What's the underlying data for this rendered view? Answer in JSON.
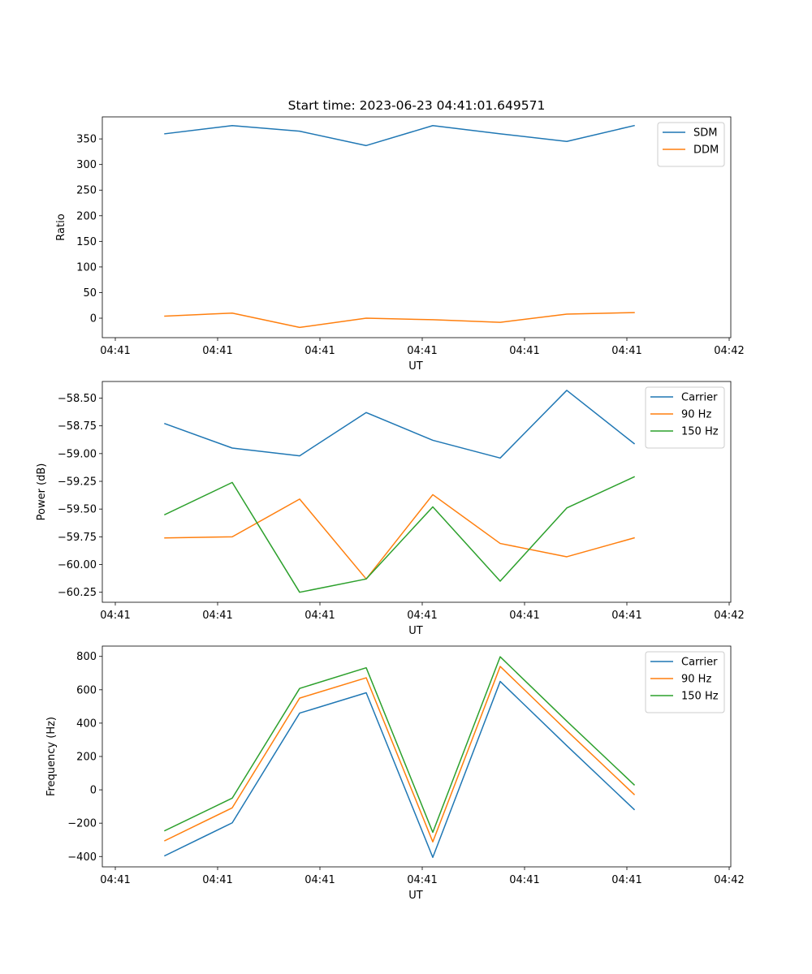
{
  "chart_data": [
    {
      "type": "line",
      "title": "Start time: 2023-06-23 04:41:01.649571",
      "xlabel": "UT",
      "ylabel": "Ratio",
      "x": [
        1,
        2,
        3,
        4,
        5,
        6,
        7,
        8
      ],
      "x_tick_labels": [
        "04:41",
        "04:41",
        "04:41",
        "04:41",
        "04:41",
        "04:41",
        "04:42"
      ],
      "ylim": [
        -38,
        393
      ],
      "yticks": [
        0,
        50,
        100,
        150,
        200,
        250,
        300,
        350
      ],
      "ytick_labels": [
        "0",
        "50",
        "100",
        "150",
        "200",
        "250",
        "300",
        "350"
      ],
      "legend": "top-right",
      "grid": false,
      "series": [
        {
          "name": "SDM",
          "color": "#1f77b4",
          "values": [
            360,
            376,
            365,
            337,
            376,
            360,
            345,
            376
          ]
        },
        {
          "name": "DDM",
          "color": "#ff7f0e",
          "values": [
            4,
            10,
            -18,
            0,
            -3,
            -8,
            8,
            11
          ]
        }
      ]
    },
    {
      "type": "line",
      "title": "",
      "xlabel": "UT",
      "ylabel": "Power (dB)",
      "x": [
        1,
        2,
        3,
        4,
        5,
        6,
        7,
        8
      ],
      "x_tick_labels": [
        "04:41",
        "04:41",
        "04:41",
        "04:41",
        "04:41",
        "04:41",
        "04:42"
      ],
      "ylim": [
        -60.34,
        -58.35
      ],
      "yticks": [
        -60.25,
        -60.0,
        -59.75,
        -59.5,
        -59.25,
        -59.0,
        -58.75,
        -58.5
      ],
      "ytick_labels": [
        "−60.25",
        "−60.00",
        "−59.75",
        "−59.50",
        "−59.25",
        "−59.00",
        "−58.75",
        "−58.50"
      ],
      "legend": "top-right",
      "grid": false,
      "series": [
        {
          "name": "Carrier",
          "color": "#1f77b4",
          "values": [
            -58.73,
            -58.95,
            -59.02,
            -58.63,
            -58.88,
            -59.04,
            -58.43,
            -58.91
          ]
        },
        {
          "name": "90 Hz",
          "color": "#ff7f0e",
          "values": [
            -59.76,
            -59.75,
            -59.41,
            -60.13,
            -59.37,
            -59.81,
            -59.93,
            -59.76
          ]
        },
        {
          "name": "150 Hz",
          "color": "#2ca02c",
          "values": [
            -59.55,
            -59.26,
            -60.25,
            -60.13,
            -59.48,
            -60.15,
            -59.49,
            -59.21
          ]
        }
      ]
    },
    {
      "type": "line",
      "title": "",
      "xlabel": "UT",
      "ylabel": "Frequency (Hz)",
      "x": [
        1,
        2,
        3,
        4,
        5,
        6,
        7,
        8
      ],
      "x_tick_labels": [
        "04:41",
        "04:41",
        "04:41",
        "04:41",
        "04:41",
        "04:41",
        "04:42"
      ],
      "ylim": [
        -462,
        862
      ],
      "yticks": [
        -400,
        -200,
        0,
        200,
        400,
        600,
        800
      ],
      "ytick_labels": [
        "−400",
        "−200",
        "0",
        "200",
        "400",
        "600",
        "800"
      ],
      "legend": "top-right",
      "grid": false,
      "series": [
        {
          "name": "Carrier",
          "color": "#1f77b4",
          "values": [
            -395,
            -198,
            460,
            582,
            -405,
            650,
            265,
            -118
          ]
        },
        {
          "name": "90 Hz",
          "color": "#ff7f0e",
          "values": [
            -305,
            -108,
            550,
            672,
            -312,
            740,
            355,
            -28
          ]
        },
        {
          "name": "150 Hz",
          "color": "#2ca02c",
          "values": [
            -245,
            -50,
            608,
            732,
            -255,
            798,
            412,
            30
          ]
        }
      ]
    }
  ]
}
